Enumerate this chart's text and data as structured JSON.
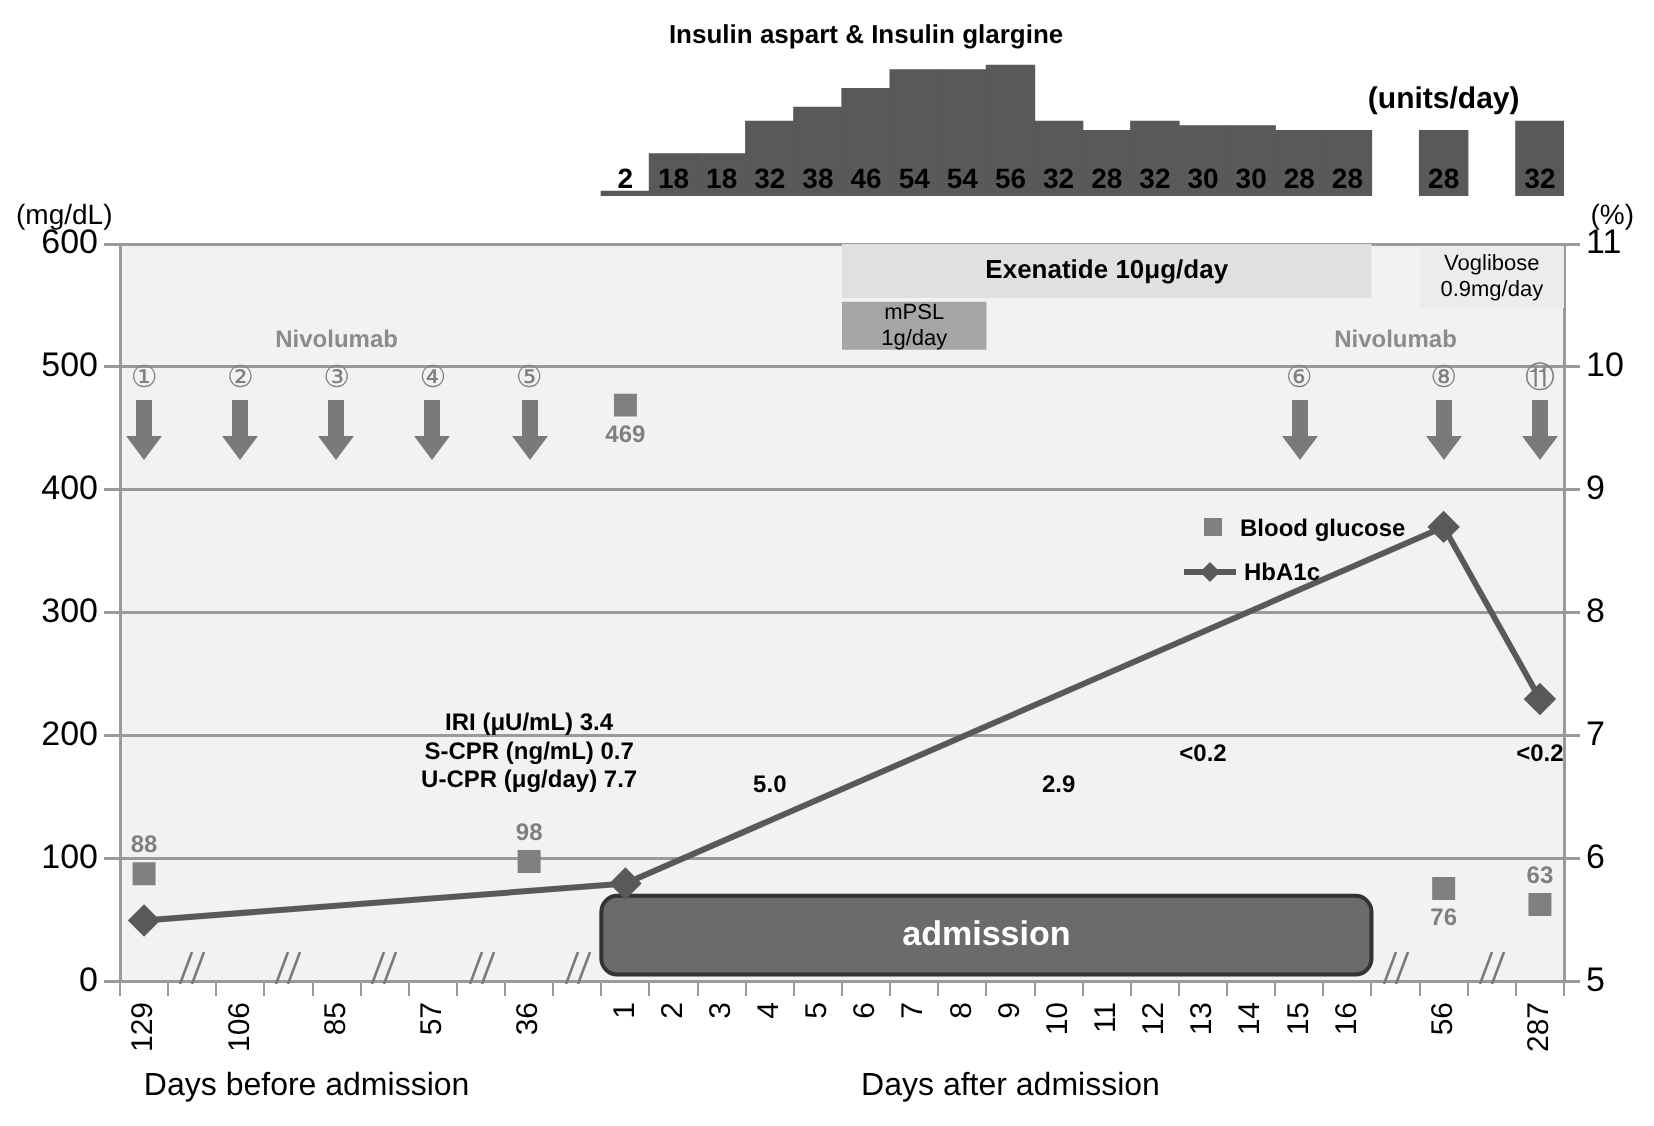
{
  "chart_data": [
    {
      "type": "bar",
      "title": "Insulin aspart & Insulin glargine",
      "ylabel": "(units/day)",
      "data_labels": true,
      "tick_labels": false,
      "categories": [
        "129",
        null,
        "106",
        null,
        "85",
        null,
        "57",
        null,
        "36",
        null,
        "1",
        "2",
        "3",
        "4",
        "5",
        "6",
        "7",
        "8",
        "9",
        "10",
        "11",
        "12",
        "13",
        "14",
        "15",
        "16",
        null,
        "56",
        null,
        "287"
      ],
      "series": [
        {
          "color": "#595959",
          "values": [
            null,
            null,
            null,
            null,
            null,
            null,
            null,
            null,
            null,
            null,
            2,
            18,
            18,
            32,
            38,
            46,
            54,
            54,
            56,
            32,
            28,
            32,
            30,
            30,
            28,
            28,
            null,
            28,
            null,
            32
          ]
        }
      ]
    },
    {
      "type": "line",
      "ylabel": "(mg/dL)",
      "y2label": "(%)",
      "xlabel": "Days after admission",
      "categories": [
        "129",
        null,
        "106",
        null,
        "85",
        null,
        "57",
        null,
        "36",
        null,
        "1",
        "2",
        "3",
        "4",
        "5",
        "6",
        "7",
        "8",
        "9",
        "10",
        "11",
        "12",
        "13",
        "14",
        "15",
        "16",
        null,
        "56",
        null,
        "287"
      ],
      "ylim": [
        0,
        600
      ],
      "yticks": [
        0,
        100,
        200,
        300,
        400,
        500,
        600
      ],
      "y2lim": [
        5,
        11
      ],
      "y2ticks": [
        5,
        6,
        7,
        8,
        9,
        10,
        11
      ],
      "grid": "y",
      "legend": "top right",
      "series": [
        {
          "name": "Blood glucose",
          "type": "scatter",
          "marker": "square",
          "color": "#808080",
          "values": [
            88,
            null,
            null,
            null,
            null,
            null,
            null,
            null,
            98,
            null,
            469,
            null,
            null,
            null,
            null,
            null,
            null,
            null,
            null,
            null,
            null,
            null,
            null,
            null,
            null,
            null,
            null,
            76,
            null,
            63
          ],
          "value_labels": [
            "88",
            null,
            null,
            null,
            null,
            null,
            null,
            null,
            "98",
            null,
            "469",
            null,
            null,
            null,
            null,
            null,
            null,
            null,
            null,
            null,
            null,
            null,
            null,
            null,
            null,
            null,
            null,
            "76",
            null,
            "63"
          ]
        },
        {
          "name": "HbA1c",
          "axis": "y2",
          "marker": "diamond",
          "color": "#595959",
          "values": [
            5.5,
            null,
            null,
            null,
            null,
            null,
            null,
            null,
            null,
            null,
            5.8,
            null,
            null,
            null,
            null,
            null,
            null,
            null,
            null,
            null,
            null,
            null,
            null,
            null,
            null,
            null,
            null,
            8.7,
            null,
            7.3
          ]
        }
      ],
      "bands": [
        {
          "axis": "x",
          "from": "6",
          "to": "16",
          "label": "Exenatide 10μg/day",
          "color": "#e0e0e0"
        },
        {
          "axis": "x",
          "from": "6",
          "to": "8",
          "label": "mPSL\n1g/day",
          "color": "#a6a6a6"
        },
        {
          "axis": "x",
          "from": "56",
          "to": "287",
          "label": "Voglibose\n0.9mg/day",
          "color": "#ececec"
        },
        {
          "axis": "x",
          "from": "1",
          "to": "16",
          "label": "admission",
          "color": "#6b6b6b"
        }
      ],
      "annotations": [
        "①",
        "②",
        "③",
        "④",
        "⑤",
        "⑥",
        "⑧",
        "⑪",
        "Nivolumab",
        "Nivolumab",
        "IRI (μU/mL) 3.4",
        "S-CPR (ng/mL) 0.7",
        "U-CPR (μg/day) 7.7",
        "5.0",
        "2.9",
        "<0.2",
        "<0.2",
        "Days before admission"
      ]
    }
  ]
}
